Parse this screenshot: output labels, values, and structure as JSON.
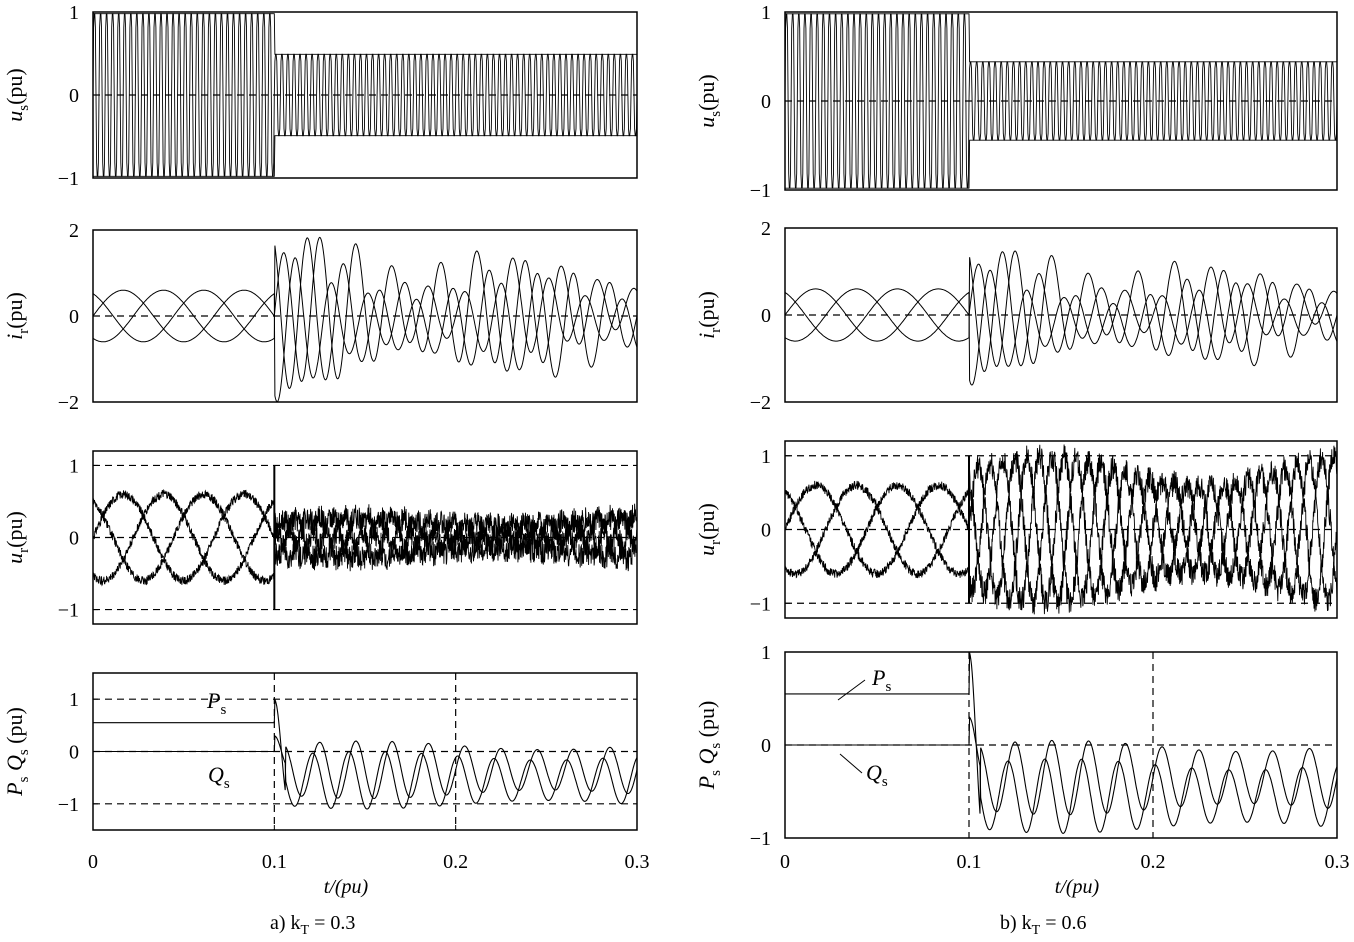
{
  "figure": {
    "x_axis_label": "t/(pu)",
    "x_ticks": [
      "0",
      "0.1",
      "0.2",
      "0.3"
    ]
  },
  "columns": [
    {
      "caption": "a)  k",
      "caption_sub": "T",
      "caption_value": " = 0.3",
      "k_T": 0.3
    },
    {
      "caption": "b) k",
      "caption_sub": "T",
      "caption_value": " = 0.6",
      "k_T": 0.6
    }
  ],
  "row_labels": [
    {
      "main": "u",
      "sub": "s",
      "unit": "(pu)"
    },
    {
      "main": "i",
      "sub": "r",
      "unit": "(pu)"
    },
    {
      "main": "u",
      "sub": "r",
      "unit": "(pu)"
    },
    {
      "main": "P",
      "sub": "s",
      "main2": " Q",
      "sub2": "s",
      "unit": " (pu)"
    }
  ],
  "annotations": {
    "p_label": "P",
    "p_sub": "s",
    "q_label": "Q",
    "q_sub": "s"
  },
  "chart_data": [
    {
      "panel": "a-us",
      "type": "line",
      "ylabel": "us(pu)",
      "xlim": [
        0,
        0.3
      ],
      "ylim": [
        -1,
        1
      ],
      "yticks": [
        "1",
        "0",
        "−1"
      ],
      "series_description": "three-phase stator voltage, amplitude 1.0 before t=0.1, 0.5 after",
      "amplitude_before": 1.0,
      "amplitude_after": 0.5,
      "event_time": 0.1
    },
    {
      "panel": "a-ir",
      "type": "line",
      "ylabel": "ir(pu)",
      "xlim": [
        0,
        0.3
      ],
      "ylim": [
        -2,
        2
      ],
      "yticks": [
        "2",
        "0",
        "−2"
      ],
      "amplitude_before": 0.6,
      "peak_after": 1.9,
      "event_time": 0.1
    },
    {
      "panel": "a-ur",
      "type": "line",
      "ylabel": "ur(pu)",
      "xlim": [
        0,
        0.3
      ],
      "ylim": [
        -1.2,
        1.2
      ],
      "yticks": [
        "1",
        "0",
        "−1"
      ],
      "limit_lines": [
        1,
        -1
      ],
      "amplitude_before": 0.6,
      "amplitude_after": 0.3,
      "event_time": 0.1
    },
    {
      "panel": "a-pq",
      "type": "line",
      "ylabel": "Ps Qs (pu)",
      "xlim": [
        0,
        0.3
      ],
      "ylim": [
        -1.5,
        1.5
      ],
      "yticks": [
        "1",
        "0",
        "−1"
      ],
      "reference_lines": [
        1,
        -1
      ],
      "series": [
        {
          "name": "Ps",
          "initial_value": 0.55
        },
        {
          "name": "Qs",
          "initial_value": 0
        }
      ],
      "event_time": 0.1
    },
    {
      "panel": "b-us",
      "type": "line",
      "ylabel": "us(pu)",
      "xlim": [
        0,
        0.3
      ],
      "ylim": [
        -1,
        1
      ],
      "yticks": [
        "1",
        "0",
        "−1"
      ],
      "amplitude_before": 1.0,
      "amplitude_after": 0.45,
      "event_time": 0.1
    },
    {
      "panel": "b-ir",
      "type": "line",
      "ylabel": "ir(pu)",
      "xlim": [
        0,
        0.3
      ],
      "ylim": [
        -2,
        2
      ],
      "yticks": [
        "2",
        "0",
        "−2"
      ],
      "amplitude_before": 0.6,
      "peak_after": 1.5,
      "event_time": 0.1
    },
    {
      "panel": "b-ur",
      "type": "line",
      "ylabel": "ur(pu)",
      "xlim": [
        0,
        0.3
      ],
      "ylim": [
        -1.2,
        1.2
      ],
      "yticks": [
        "1",
        "0",
        "−1"
      ],
      "limit_lines": [
        1,
        -1
      ],
      "amplitude_before": 0.6,
      "amplitude_after": 1.0,
      "event_time": 0.1
    },
    {
      "panel": "b-pq",
      "type": "line",
      "ylabel": "Ps Qs (pu)",
      "xlim": [
        0,
        0.3
      ],
      "ylim": [
        -1,
        1
      ],
      "yticks": [
        "1",
        "0",
        "−1"
      ],
      "reference_lines": [
        0
      ],
      "series": [
        {
          "name": "Ps",
          "initial_value": 0.55
        },
        {
          "name": "Qs",
          "initial_value": 0
        }
      ],
      "event_time": 0.1
    }
  ]
}
